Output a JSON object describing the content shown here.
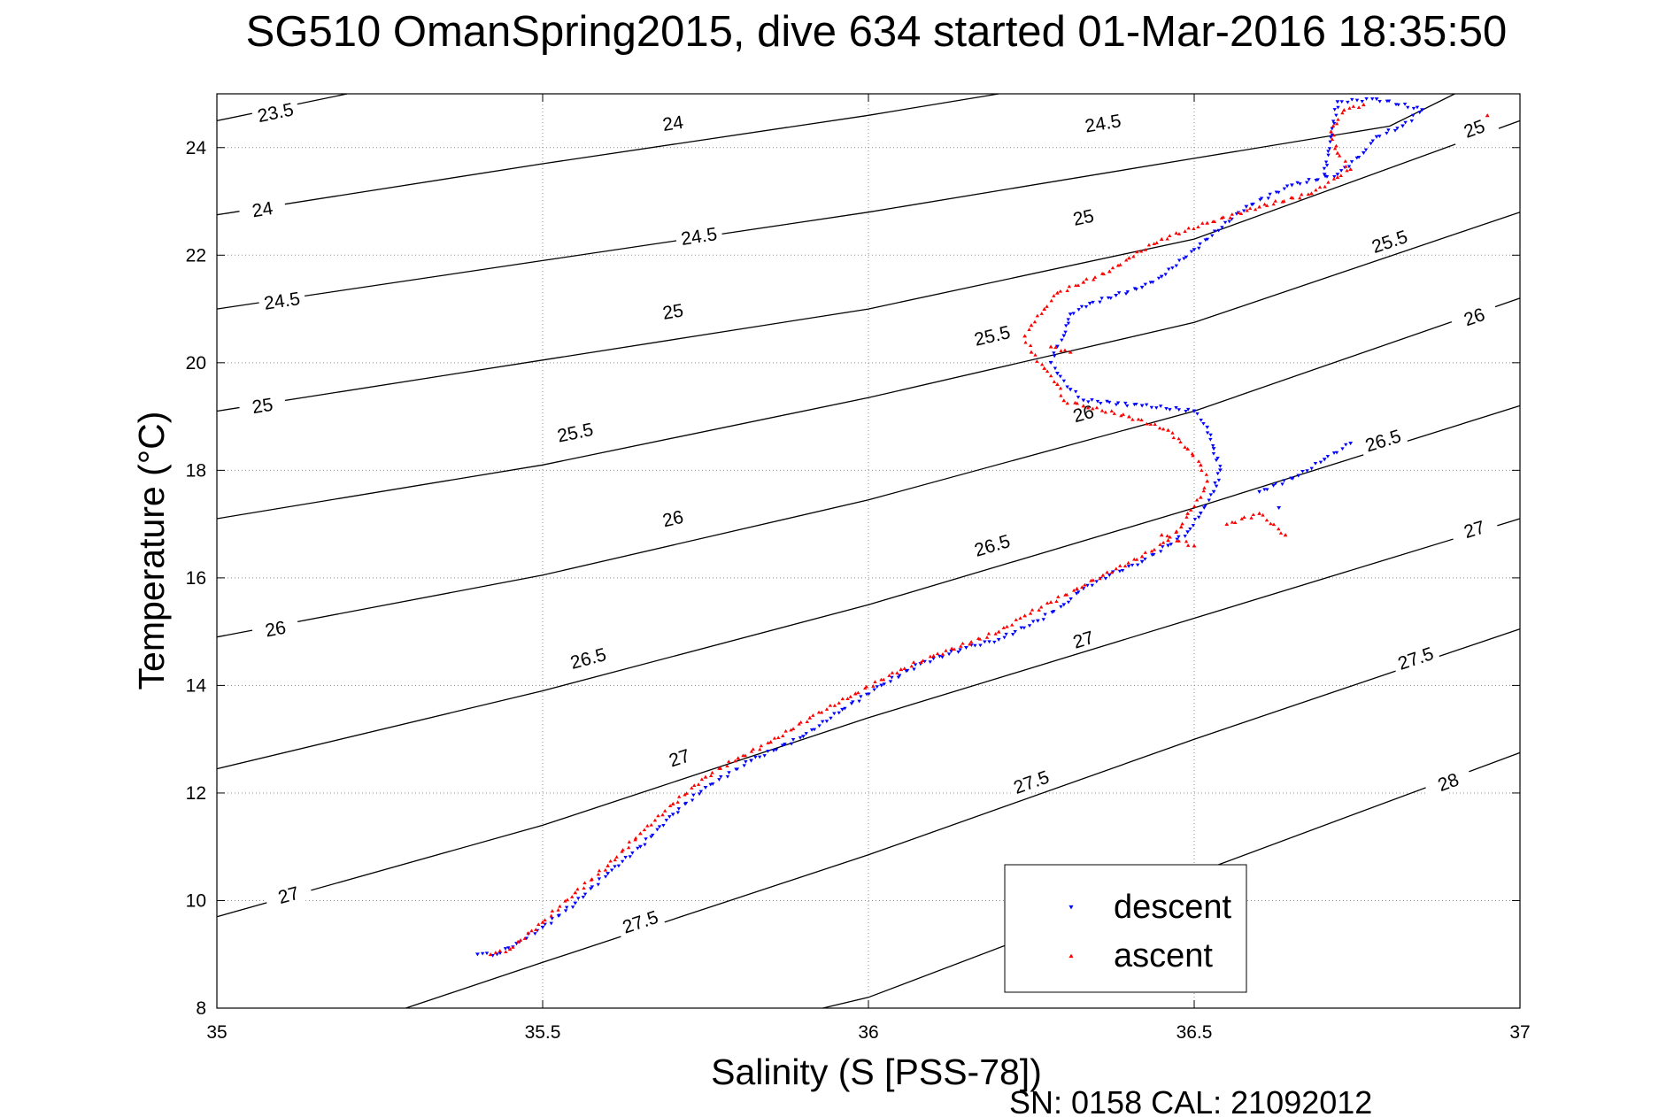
{
  "chart_data": {
    "type": "scatter",
    "title": "SG510 OmanSpring2015, dive 634 started 01-Mar-2016 18:35:50",
    "xlabel": "Salinity (S [PSS-78])",
    "ylabel": "Temperature (°C)",
    "footer": "SN: 0158  CAL: 21092012",
    "xlim": [
      35,
      37
    ],
    "ylim": [
      8,
      25
    ],
    "xticks": [
      "35",
      "35.5",
      "36",
      "36.5",
      "37"
    ],
    "yticks": [
      "8",
      "10",
      "12",
      "14",
      "16",
      "18",
      "20",
      "22",
      "24"
    ],
    "grid": true,
    "legend_position": "bottom-right",
    "colors": {
      "descent": "#0000ff",
      "ascent": "#ff0000",
      "isopycnal": "#000000"
    },
    "isopycnals": [
      {
        "label": "23.5",
        "points": [
          [
            35,
            24.5
          ],
          [
            35.2,
            25.0
          ]
        ],
        "labels_at": [
          [
            35.09,
            24.65
          ]
        ]
      },
      {
        "label": "24",
        "points": [
          [
            35,
            22.75
          ],
          [
            35.5,
            23.7
          ],
          [
            36,
            24.6
          ],
          [
            36.2,
            25.0
          ]
        ],
        "labels_at": [
          [
            35.07,
            22.85
          ],
          [
            35.7,
            24.45
          ]
        ]
      },
      {
        "label": "24.5",
        "points": [
          [
            35,
            21.0
          ],
          [
            35.5,
            21.9
          ],
          [
            36,
            22.8
          ],
          [
            36.5,
            23.8
          ],
          [
            36.8,
            24.4
          ],
          [
            36.9,
            25.0
          ]
        ],
        "labels_at": [
          [
            35.1,
            21.15
          ],
          [
            35.74,
            22.35
          ],
          [
            36.36,
            24.45
          ]
        ]
      },
      {
        "label": "25",
        "points": [
          [
            35,
            19.1
          ],
          [
            35.5,
            20.05
          ],
          [
            36,
            21.0
          ],
          [
            36.5,
            22.3
          ],
          [
            37,
            24.5
          ]
        ],
        "labels_at": [
          [
            35.07,
            19.2
          ],
          [
            35.7,
            20.95
          ],
          [
            36.33,
            22.7
          ],
          [
            36.93,
            24.35
          ]
        ]
      },
      {
        "label": "25.5",
        "points": [
          [
            35,
            17.1
          ],
          [
            35.5,
            18.1
          ],
          [
            36,
            19.35
          ],
          [
            36.5,
            20.75
          ],
          [
            37,
            22.8
          ]
        ],
        "labels_at": [
          [
            35.55,
            18.7
          ],
          [
            36.19,
            20.5
          ],
          [
            36.8,
            22.25
          ]
        ]
      },
      {
        "label": "26",
        "points": [
          [
            35,
            14.9
          ],
          [
            35.5,
            16.05
          ],
          [
            36,
            17.45
          ],
          [
            36.5,
            19.1
          ],
          [
            37,
            21.2
          ]
        ],
        "labels_at": [
          [
            35.09,
            15.05
          ],
          [
            35.7,
            17.1
          ],
          [
            36.33,
            19.05
          ],
          [
            36.93,
            20.85
          ]
        ]
      },
      {
        "label": "26.5",
        "points": [
          [
            35,
            12.45
          ],
          [
            35.5,
            13.9
          ],
          [
            36,
            15.5
          ],
          [
            36.5,
            17.3
          ],
          [
            37,
            19.2
          ]
        ],
        "labels_at": [
          [
            35.57,
            14.5
          ],
          [
            36.19,
            16.6
          ],
          [
            36.79,
            18.55
          ]
        ]
      },
      {
        "label": "27",
        "points": [
          [
            35,
            9.7
          ],
          [
            35.5,
            11.4
          ],
          [
            36,
            13.4
          ],
          [
            36.5,
            15.25
          ],
          [
            37,
            17.1
          ]
        ],
        "labels_at": [
          [
            35.11,
            10.1
          ],
          [
            35.71,
            12.65
          ],
          [
            36.33,
            14.85
          ],
          [
            36.93,
            16.9
          ]
        ]
      },
      {
        "label": "27.5",
        "points": [
          [
            35.29,
            8.0
          ],
          [
            35.5,
            8.85
          ],
          [
            36,
            10.85
          ],
          [
            36.5,
            13.0
          ],
          [
            37,
            15.05
          ]
        ],
        "labels_at": [
          [
            35.65,
            9.6
          ],
          [
            36.25,
            12.2
          ],
          [
            36.84,
            14.5
          ]
        ]
      },
      {
        "label": "28",
        "points": [
          [
            35.93,
            8.0
          ],
          [
            36,
            8.2
          ],
          [
            36.5,
            10.5
          ],
          [
            37,
            12.75
          ]
        ],
        "labels_at": [
          [
            36.89,
            12.2
          ]
        ]
      }
    ],
    "series": [
      {
        "name": "descent",
        "color": "#0000ff",
        "marker": "triangle-down",
        "points": [
          [
            35.4,
            9.0
          ],
          [
            35.43,
            9.0
          ],
          [
            35.46,
            9.2
          ],
          [
            35.5,
            9.5
          ],
          [
            35.55,
            9.95
          ],
          [
            35.6,
            10.5
          ],
          [
            35.65,
            11.0
          ],
          [
            35.7,
            11.6
          ],
          [
            35.75,
            12.1
          ],
          [
            35.82,
            12.6
          ],
          [
            35.9,
            13.05
          ],
          [
            35.96,
            13.55
          ],
          [
            36.02,
            14.0
          ],
          [
            36.08,
            14.4
          ],
          [
            36.15,
            14.7
          ],
          [
            36.2,
            14.85
          ],
          [
            36.26,
            15.2
          ],
          [
            36.3,
            15.5
          ],
          [
            36.33,
            15.8
          ],
          [
            36.37,
            16.05
          ],
          [
            36.42,
            16.3
          ],
          [
            36.46,
            16.6
          ],
          [
            36.49,
            16.85
          ],
          [
            36.51,
            17.2
          ],
          [
            36.53,
            17.6
          ],
          [
            36.54,
            18.0
          ],
          [
            36.53,
            18.4
          ],
          [
            36.52,
            18.8
          ],
          [
            36.5,
            19.1
          ],
          [
            36.42,
            19.2
          ],
          [
            36.33,
            19.3
          ],
          [
            36.31,
            19.5
          ],
          [
            36.29,
            19.8
          ],
          [
            36.28,
            20.0
          ],
          [
            36.29,
            20.3
          ],
          [
            36.3,
            20.5
          ],
          [
            36.31,
            20.9
          ],
          [
            36.34,
            21.1
          ],
          [
            36.38,
            21.25
          ],
          [
            36.42,
            21.4
          ],
          [
            36.45,
            21.6
          ],
          [
            36.5,
            22.1
          ],
          [
            36.58,
            22.9
          ],
          [
            36.65,
            23.3
          ],
          [
            36.72,
            23.5
          ],
          [
            36.76,
            23.9
          ],
          [
            36.78,
            24.2
          ],
          [
            36.82,
            24.4
          ],
          [
            36.85,
            24.7
          ],
          [
            36.78,
            24.9
          ],
          [
            36.72,
            24.85
          ],
          [
            36.7,
            23.5
          ],
          [
            36.6,
            17.6
          ],
          [
            36.66,
            17.9
          ],
          [
            36.7,
            18.2
          ],
          [
            36.74,
            18.5
          ],
          [
            36.63,
            17.3
          ]
        ]
      },
      {
        "name": "ascent",
        "color": "#ff0000",
        "marker": "triangle-up",
        "points": [
          [
            35.42,
            9.0
          ],
          [
            35.45,
            9.1
          ],
          [
            35.5,
            9.6
          ],
          [
            35.55,
            10.15
          ],
          [
            35.6,
            10.65
          ],
          [
            35.65,
            11.25
          ],
          [
            35.7,
            11.8
          ],
          [
            35.75,
            12.3
          ],
          [
            35.8,
            12.65
          ],
          [
            35.85,
            12.95
          ],
          [
            35.91,
            13.4
          ],
          [
            35.98,
            13.85
          ],
          [
            36.05,
            14.3
          ],
          [
            36.1,
            14.55
          ],
          [
            36.2,
            15.0
          ],
          [
            36.24,
            15.3
          ],
          [
            36.28,
            15.55
          ],
          [
            36.32,
            15.8
          ],
          [
            36.36,
            16.05
          ],
          [
            36.42,
            16.4
          ],
          [
            36.46,
            16.7
          ],
          [
            36.48,
            16.95
          ],
          [
            36.49,
            17.2
          ],
          [
            36.51,
            17.5
          ],
          [
            36.52,
            17.8
          ],
          [
            36.51,
            18.1
          ],
          [
            36.49,
            18.4
          ],
          [
            36.46,
            18.75
          ],
          [
            36.4,
            19.0
          ],
          [
            36.33,
            19.2
          ],
          [
            36.3,
            19.3
          ],
          [
            36.29,
            19.6
          ],
          [
            36.27,
            19.9
          ],
          [
            36.25,
            20.2
          ],
          [
            36.24,
            20.5
          ],
          [
            36.25,
            20.7
          ],
          [
            36.27,
            21.0
          ],
          [
            36.29,
            21.3
          ],
          [
            36.33,
            21.5
          ],
          [
            36.37,
            21.7
          ],
          [
            36.4,
            21.95
          ],
          [
            36.45,
            22.3
          ],
          [
            36.52,
            22.6
          ],
          [
            36.6,
            22.9
          ],
          [
            36.68,
            23.15
          ],
          [
            36.72,
            23.45
          ],
          [
            36.74,
            23.6
          ],
          [
            36.72,
            23.9
          ],
          [
            36.71,
            24.3
          ],
          [
            36.73,
            24.7
          ],
          [
            36.76,
            24.8
          ],
          [
            36.95,
            24.6
          ],
          [
            36.55,
            17.0
          ],
          [
            36.6,
            17.2
          ],
          [
            36.64,
            16.8
          ],
          [
            36.5,
            16.6
          ],
          [
            36.45,
            16.8
          ],
          [
            36.28,
            20.3
          ],
          [
            36.31,
            20.2
          ]
        ]
      }
    ]
  }
}
